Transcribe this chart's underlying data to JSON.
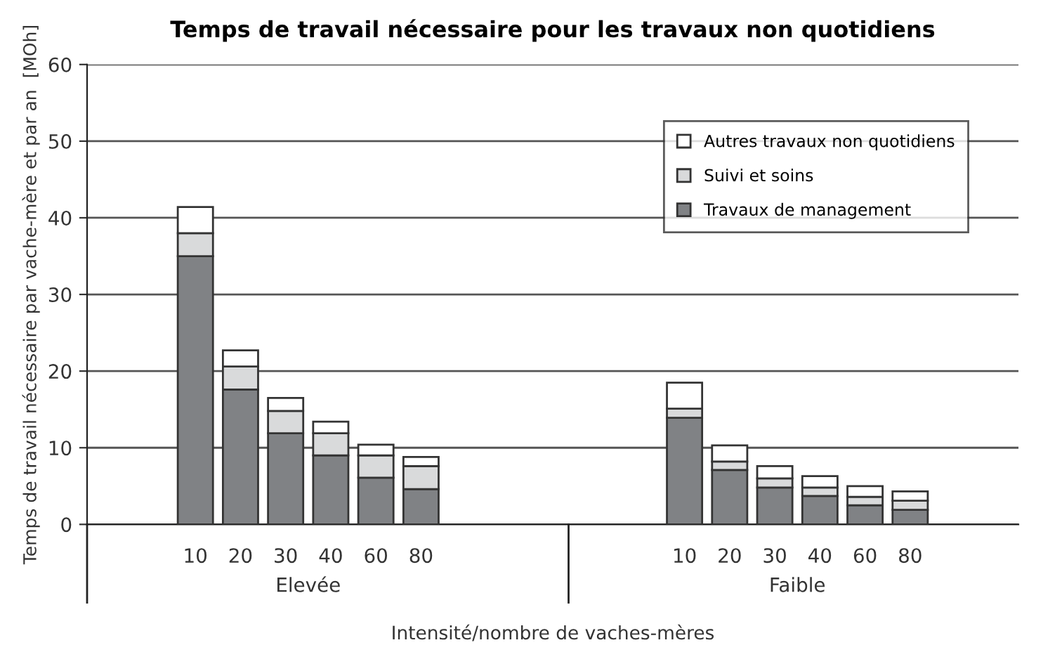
{
  "chart_data": {
    "type": "bar",
    "stacked": true,
    "title": "Temps de travail nécessaire pour les travaux non quotidiens",
    "xlabel": "Intensité/nombre de vaches-mères",
    "ylabel": "Temps de travail nécessaire par vache-mère et par an  [MOh]",
    "categories": [
      "10",
      "20",
      "30",
      "40",
      "60",
      "80",
      "10",
      "20",
      "30",
      "40",
      "60",
      "80"
    ],
    "annotations": [
      "Elevée",
      "Faible"
    ],
    "series": [
      {
        "name": "Travaux de management",
        "color": "#808285",
        "values": [
          35,
          17.6,
          11.9,
          9.0,
          6.1,
          4.6,
          13.9,
          7.1,
          4.8,
          3.7,
          2.5,
          1.9
        ]
      },
      {
        "name": "Suivi et soins",
        "color": "#d9dadb",
        "values": [
          3.0,
          3.0,
          2.9,
          2.9,
          2.9,
          3.0,
          1.2,
          1.1,
          1.2,
          1.1,
          1.1,
          1.2
        ]
      },
      {
        "name": "Autres travaux non quotidiens",
        "color": "#ffffff",
        "values": [
          3.4,
          2.1,
          1.7,
          1.5,
          1.4,
          1.2,
          3.4,
          2.1,
          1.6,
          1.5,
          1.4,
          1.2
        ]
      }
    ],
    "ylim": [
      0,
      60
    ],
    "yticks": [
      0,
      10,
      20,
      30,
      40,
      50,
      60
    ],
    "grid": "y",
    "legend": "top right"
  }
}
